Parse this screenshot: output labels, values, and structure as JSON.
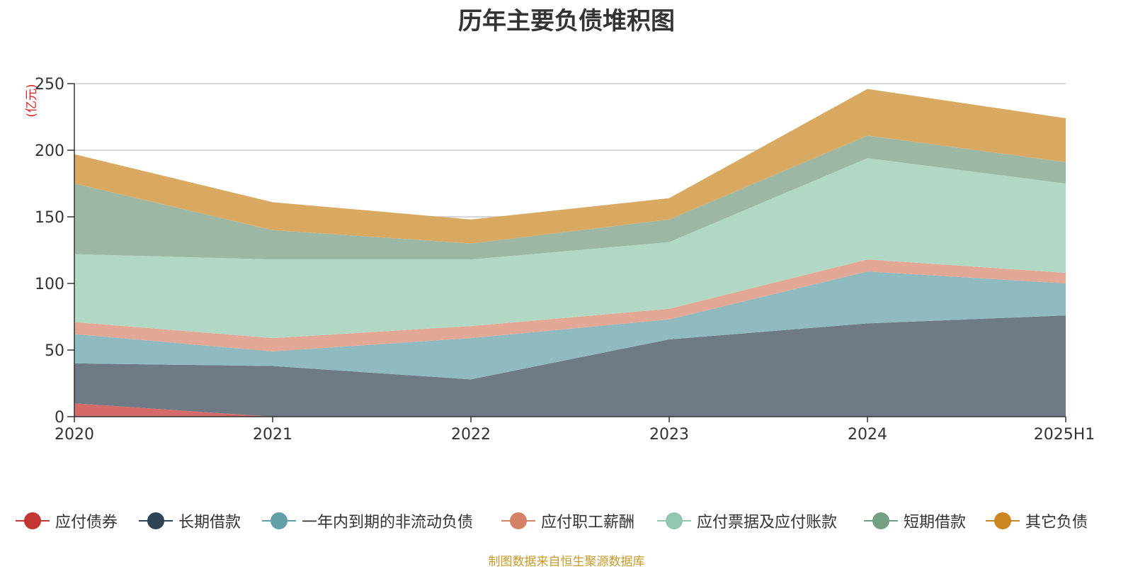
{
  "chart_data": {
    "type": "area",
    "stacked": true,
    "title": "历年主要负债堆积图",
    "ylabel": "(亿元)",
    "xlabel": "",
    "categories": [
      "2020",
      "2021",
      "2022",
      "2023",
      "2024",
      "2025H1"
    ],
    "ylim": [
      0,
      250
    ],
    "yticks": [
      0,
      50,
      100,
      150,
      200,
      250
    ],
    "grid": true,
    "legend_position": "bottom",
    "series": [
      {
        "name": "应付债券",
        "color": "#c23531",
        "fill": "#d66a69",
        "values": [
          10,
          0,
          0,
          0,
          0,
          0
        ]
      },
      {
        "name": "长期借款",
        "color": "#2f4554",
        "fill": "#6e7b86",
        "values": [
          30,
          38,
          28,
          58,
          70,
          76
        ]
      },
      {
        "name": "一年内到期的非流动负债",
        "color": "#61a0a8",
        "fill": "#8fbac0",
        "values": [
          22,
          11,
          31,
          15,
          39,
          24
        ]
      },
      {
        "name": "应付职工薪酬",
        "color": "#d48265",
        "fill": "#e3a895",
        "values": [
          9,
          10,
          9,
          8,
          9,
          8
        ]
      },
      {
        "name": "应付票据及应付账款",
        "color": "#91c7ae",
        "fill": "#b1d8c5",
        "values": [
          51,
          59,
          50,
          50,
          76,
          67
        ]
      },
      {
        "name": "短期借款",
        "color": "#749f83",
        "fill": "#9db7a5",
        "values": [
          53,
          22,
          12,
          17,
          17,
          16
        ]
      },
      {
        "name": "其它负债",
        "color": "#ca8622",
        "fill": "#d9a961",
        "values": [
          22,
          21,
          18,
          16,
          35,
          33
        ]
      }
    ]
  },
  "source_note": "制图数据来自恒生聚源数据库"
}
